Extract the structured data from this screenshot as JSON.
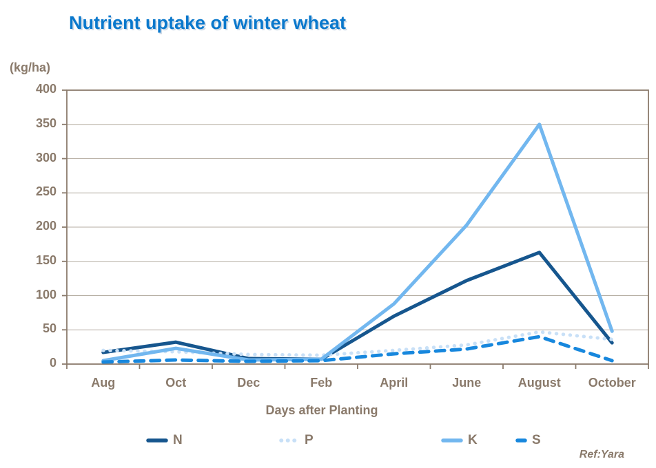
{
  "title": "Nutrient uptake of winter wheat",
  "y_axis_unit_label": "(kg/ha)",
  "x_axis_title": "Days after Planting",
  "ref_note": "Ref:Yara",
  "colors": {
    "title_text": "#0a78cc",
    "axis_text": "#8a7a6b",
    "axis_line": "#8a7a6b",
    "gridline": "#b5ada2",
    "series_n": "#16568e",
    "series_p": "#c8e0f7",
    "series_k": "#72b7ef",
    "series_s": "#1787dd"
  },
  "chart_data": {
    "type": "line",
    "title": "Nutrient uptake of winter wheat",
    "xlabel": "Days after Planting",
    "ylabel": "(kg/ha)",
    "ylim": [
      0,
      400
    ],
    "ytick_step": 50,
    "grid": true,
    "legend_position": "bottom",
    "categories": [
      "Aug",
      "Oct",
      "Dec",
      "Feb",
      "April",
      "June",
      "August",
      "October"
    ],
    "series": [
      {
        "name": "N",
        "style": "solid",
        "color": "#16568e",
        "values": [
          17,
          32,
          8,
          7,
          70,
          122,
          163,
          31
        ]
      },
      {
        "name": "P",
        "style": "dotted",
        "color": "#c8e0f7",
        "values": [
          20,
          18,
          14,
          13,
          20,
          28,
          47,
          36
        ]
      },
      {
        "name": "K",
        "style": "solid",
        "color": "#72b7ef",
        "values": [
          5,
          23,
          6,
          7,
          88,
          203,
          350,
          48
        ]
      },
      {
        "name": "S",
        "style": "dashed",
        "color": "#1787dd",
        "values": [
          3,
          6,
          4,
          5,
          15,
          22,
          40,
          5
        ]
      }
    ]
  }
}
